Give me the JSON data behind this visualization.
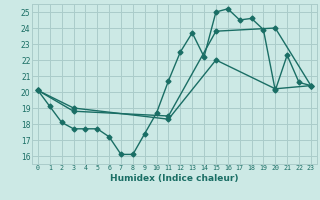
{
  "xlabel": "Humidex (Indice chaleur)",
  "xlim": [
    -0.5,
    23.5
  ],
  "ylim": [
    15.5,
    25.5
  ],
  "yticks": [
    16,
    17,
    18,
    19,
    20,
    21,
    22,
    23,
    24,
    25
  ],
  "xticks": [
    0,
    1,
    2,
    3,
    4,
    5,
    6,
    7,
    8,
    9,
    10,
    11,
    12,
    13,
    14,
    15,
    16,
    17,
    18,
    19,
    20,
    21,
    22,
    23
  ],
  "bg_color": "#cce9e5",
  "grid_color": "#aaccca",
  "line_color": "#1a6e65",
  "line1_x": [
    0,
    1,
    2,
    3,
    4,
    5,
    6,
    7,
    8,
    9,
    10,
    11,
    12,
    13,
    14,
    15,
    16,
    17,
    18,
    19,
    20,
    21,
    22,
    23
  ],
  "line1_y": [
    20.1,
    19.1,
    18.1,
    17.7,
    17.7,
    17.7,
    17.2,
    16.1,
    16.1,
    17.4,
    18.7,
    20.7,
    22.5,
    23.7,
    22.2,
    25.0,
    25.2,
    24.5,
    24.6,
    23.9,
    20.1,
    22.3,
    20.6,
    20.4
  ],
  "line2_x": [
    0,
    3,
    11,
    15,
    20,
    23
  ],
  "line2_y": [
    20.1,
    19.0,
    18.3,
    22.0,
    20.2,
    20.4
  ],
  "line3_x": [
    0,
    3,
    11,
    15,
    20,
    23
  ],
  "line3_y": [
    20.1,
    18.8,
    18.5,
    23.8,
    24.0,
    20.4
  ],
  "markersize": 2.5,
  "linewidth": 1.0
}
